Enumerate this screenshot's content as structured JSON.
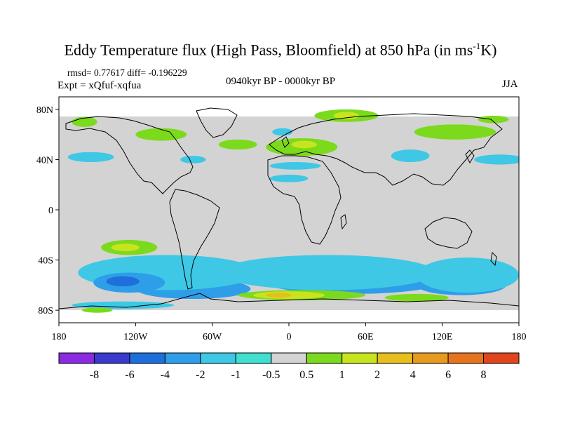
{
  "title": {
    "main": "Eddy Temperature flux (High Pass, Bloomfield) at 850 hPa (in ms",
    "sup": "-1",
    "tail": "K)"
  },
  "stats": "rmsd= 0.77617 diff= -0.196229",
  "expt": "Expt = xQfuf-xqfua",
  "period": "0940kyr BP - 0000kyr BP",
  "season": "JJA",
  "map": {
    "lon_range": [
      -180,
      180
    ],
    "lat_range": [
      -90,
      90
    ],
    "lat_ticks": [
      {
        "lat": 80,
        "label": "80N"
      },
      {
        "lat": 40,
        "label": "40N"
      },
      {
        "lat": 0,
        "label": "0"
      },
      {
        "lat": -40,
        "label": "40S"
      },
      {
        "lat": -80,
        "label": "80S"
      }
    ],
    "lon_ticks": [
      {
        "lon": -180,
        "label": "180"
      },
      {
        "lon": -120,
        "label": "120W"
      },
      {
        "lon": -60,
        "label": "60W"
      },
      {
        "lon": 0,
        "label": "0"
      },
      {
        "lon": 60,
        "label": "60E"
      },
      {
        "lon": 120,
        "label": "120E"
      },
      {
        "lon": 180,
        "label": "180"
      }
    ],
    "background_color": "#d3d3d3",
    "coastline_color": "#000000",
    "anomaly_regions": [
      {
        "level": "-2",
        "lon": -75,
        "lat": -63,
        "rx": 45,
        "ry": 8
      },
      {
        "level": "-2",
        "lon": 50,
        "lat": -57,
        "rx": 70,
        "ry": 10
      },
      {
        "level": "-2",
        "lon": 135,
        "lat": -60,
        "rx": 35,
        "ry": 8
      },
      {
        "level": "-1",
        "lon": -95,
        "lat": -50,
        "rx": 70,
        "ry": 14
      },
      {
        "level": "-1",
        "lon": 30,
        "lat": -50,
        "rx": 85,
        "ry": 14
      },
      {
        "level": "-1",
        "lon": 140,
        "lat": -52,
        "rx": 40,
        "ry": 14
      },
      {
        "level": "-2",
        "lon": -125,
        "lat": -58,
        "rx": 28,
        "ry": 8
      },
      {
        "level": "-4",
        "lon": -130,
        "lat": -57,
        "rx": 13,
        "ry": 4
      },
      {
        "level": "1",
        "lon": -125,
        "lat": -30,
        "rx": 22,
        "ry": 6
      },
      {
        "level": "2",
        "lon": -128,
        "lat": -30,
        "rx": 11,
        "ry": 3
      },
      {
        "level": "1",
        "lon": 10,
        "lat": -68,
        "rx": 50,
        "ry": 4
      },
      {
        "level": "2",
        "lon": 0,
        "lat": -68,
        "rx": 28,
        "ry": 3
      },
      {
        "level": "4",
        "lon": -8,
        "lat": -68,
        "rx": 10,
        "ry": 2
      },
      {
        "level": "1",
        "lon": 100,
        "lat": -70,
        "rx": 25,
        "ry": 3
      },
      {
        "level": "-1",
        "lon": -130,
        "lat": -76,
        "rx": 40,
        "ry": 3
      },
      {
        "level": "1",
        "lon": -150,
        "lat": -80,
        "rx": 12,
        "ry": 2
      },
      {
        "level": "-1",
        "lon": 5,
        "lat": 35,
        "rx": 20,
        "ry": 3
      },
      {
        "level": "-1",
        "lon": 0,
        "lat": 25,
        "rx": 15,
        "ry": 3
      },
      {
        "level": "-1",
        "lon": 95,
        "lat": 43,
        "rx": 15,
        "ry": 5
      },
      {
        "level": "-1",
        "lon": 165,
        "lat": 40,
        "rx": 20,
        "ry": 4
      },
      {
        "level": "-1",
        "lon": -155,
        "lat": 42,
        "rx": 18,
        "ry": 4
      },
      {
        "level": "-1",
        "lon": -75,
        "lat": 40,
        "rx": 10,
        "ry": 3
      },
      {
        "level": "-1",
        "lon": -5,
        "lat": 62,
        "rx": 8,
        "ry": 3
      },
      {
        "level": "1",
        "lon": -100,
        "lat": 60,
        "rx": 20,
        "ry": 5
      },
      {
        "level": "1",
        "lon": -40,
        "lat": 52,
        "rx": 15,
        "ry": 4
      },
      {
        "level": "1",
        "lon": 10,
        "lat": 50,
        "rx": 28,
        "ry": 7
      },
      {
        "level": "2",
        "lon": 12,
        "lat": 52,
        "rx": 10,
        "ry": 3
      },
      {
        "level": "1",
        "lon": 45,
        "lat": 75,
        "rx": 25,
        "ry": 5
      },
      {
        "level": "2",
        "lon": 45,
        "lat": 75,
        "rx": 10,
        "ry": 3
      },
      {
        "level": "1",
        "lon": 130,
        "lat": 62,
        "rx": 32,
        "ry": 6
      },
      {
        "level": "1",
        "lon": -160,
        "lat": 70,
        "rx": 10,
        "ry": 4
      },
      {
        "level": "1",
        "lon": 160,
        "lat": 72,
        "rx": 12,
        "ry": 3
      }
    ]
  },
  "colorbar": {
    "colors": [
      "#8A2BE2",
      "#3A3ACF",
      "#1E6FDB",
      "#2E9EE8",
      "#3EC8E5",
      "#3FE0D0",
      "#D3D3D3",
      "#7CDA1C",
      "#C8E41E",
      "#E6BE1E",
      "#E69A1E",
      "#E6731E",
      "#E0461E"
    ],
    "labels": [
      "-8",
      "-6",
      "-4",
      "-2",
      "-1",
      "-0.5",
      "0.5",
      "1",
      "2",
      "4",
      "6",
      "8"
    ],
    "level_colors": {
      "-8": "#8A2BE2",
      "-6": "#3A3ACF",
      "-4": "#1E6FDB",
      "-2": "#2E9EE8",
      "-1": "#3EC8E5",
      "-0.5": "#3FE0D0",
      "0.5": "#D3D3D3",
      "1": "#7CDA1C",
      "2": "#C8E41E",
      "4": "#E6BE1E",
      "6": "#E69A1E",
      "8": "#E6731E"
    }
  }
}
